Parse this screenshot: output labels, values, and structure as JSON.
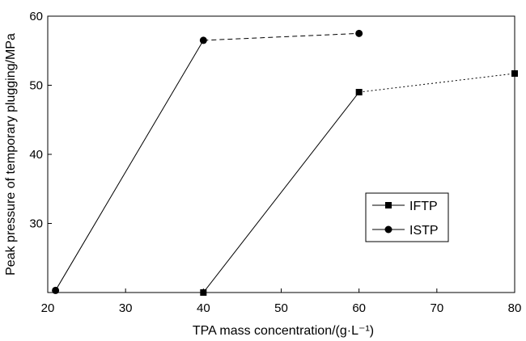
{
  "chart_data": {
    "type": "line",
    "title": "",
    "xlabel": "TPA mass concentration/(g·L⁻¹)",
    "ylabel": "Peak pressure of temporary plugging/MPa",
    "xlim": [
      20,
      80
    ],
    "ylim": [
      20,
      60
    ],
    "xticks": [
      20,
      30,
      40,
      50,
      60,
      70,
      80
    ],
    "yticks": [
      30,
      40,
      50,
      60
    ],
    "grid": false,
    "legend_position": "lower-right",
    "series": [
      {
        "name": "IFTP",
        "marker": "square",
        "x": [
          40,
          60,
          80
        ],
        "y": [
          20.0,
          49.0,
          51.7
        ],
        "line_styles": [
          "solid",
          "dotted"
        ]
      },
      {
        "name": "ISTP",
        "marker": "circle",
        "x": [
          21,
          40,
          60
        ],
        "y": [
          20.3,
          56.5,
          57.5
        ],
        "line_styles": [
          "solid",
          "dashed"
        ]
      }
    ],
    "colors": {
      "line": "#000000",
      "background": "#ffffff"
    }
  }
}
